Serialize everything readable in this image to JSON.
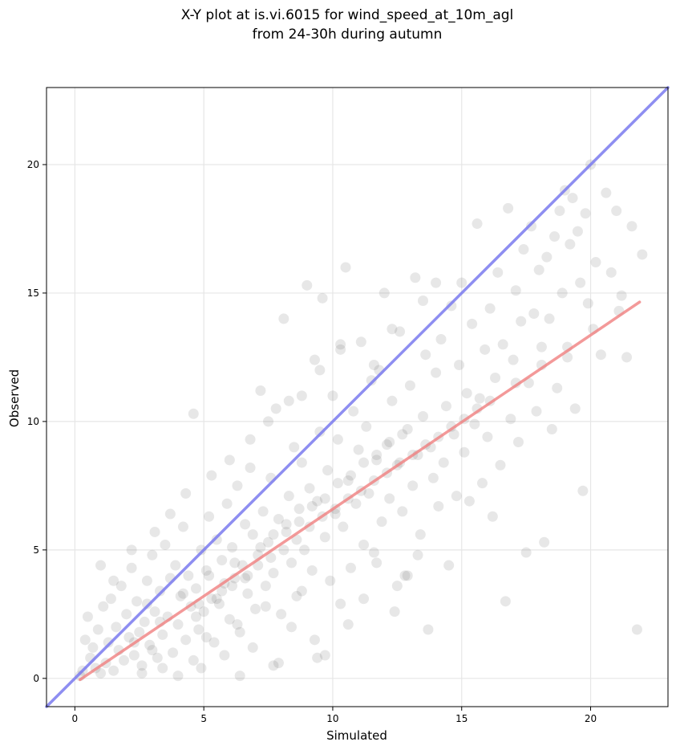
{
  "chart_data": {
    "type": "scatter",
    "title_line1": "X-Y plot at is.vi.6015 for wind_speed_at_10m_agl",
    "title_line2": "from 24-30h during autumn",
    "xlabel": "Simulated",
    "ylabel": "Observed",
    "xlim": [
      -1.1,
      23.0
    ],
    "ylim": [
      -1.1,
      23.0
    ],
    "xticks": [
      "0",
      "5",
      "10",
      "15",
      "20"
    ],
    "yticks": [
      "0",
      "5",
      "10",
      "15",
      "20"
    ],
    "grid": true,
    "legend": "none",
    "point_color": "#555555",
    "points": [
      [
        0.2,
        0.1
      ],
      [
        0.3,
        0.3
      ],
      [
        0.4,
        1.5
      ],
      [
        0.5,
        2.4
      ],
      [
        0.6,
        0.8
      ],
      [
        0.7,
        1.2
      ],
      [
        0.8,
        0.4
      ],
      [
        0.9,
        1.9
      ],
      [
        1.0,
        0.2
      ],
      [
        1.1,
        2.8
      ],
      [
        1.2,
        0.6
      ],
      [
        1.3,
        1.4
      ],
      [
        1.4,
        3.1
      ],
      [
        1.5,
        0.3
      ],
      [
        1.6,
        2.0
      ],
      [
        1.7,
        1.1
      ],
      [
        1.8,
        3.6
      ],
      [
        1.9,
        0.7
      ],
      [
        2.0,
        2.5
      ],
      [
        2.1,
        1.6
      ],
      [
        2.2,
        4.3
      ],
      [
        2.3,
        0.9
      ],
      [
        2.4,
        3.0
      ],
      [
        2.5,
        1.8
      ],
      [
        2.6,
        0.5
      ],
      [
        2.7,
        2.2
      ],
      [
        2.8,
        3.8
      ],
      [
        2.9,
        1.3
      ],
      [
        3.0,
        4.8
      ],
      [
        3.1,
        2.6
      ],
      [
        3.2,
        0.8
      ],
      [
        3.3,
        3.4
      ],
      [
        3.4,
        1.7
      ],
      [
        3.5,
        5.2
      ],
      [
        3.6,
        2.4
      ],
      [
        3.7,
        3.9
      ],
      [
        3.8,
        1.0
      ],
      [
        3.9,
        4.4
      ],
      [
        4.0,
        2.1
      ],
      [
        4.1,
        3.2
      ],
      [
        4.2,
        5.9
      ],
      [
        4.3,
        1.5
      ],
      [
        4.4,
        4.0
      ],
      [
        4.5,
        2.8
      ],
      [
        4.6,
        10.3
      ],
      [
        4.7,
        3.5
      ],
      [
        4.8,
        1.9
      ],
      [
        4.9,
        5.0
      ],
      [
        5.0,
        2.6
      ],
      [
        5.1,
        4.2
      ],
      [
        5.2,
        6.3
      ],
      [
        5.3,
        3.1
      ],
      [
        5.4,
        1.4
      ],
      [
        5.5,
        5.4
      ],
      [
        5.6,
        2.9
      ],
      [
        5.7,
        4.6
      ],
      [
        5.8,
        3.7
      ],
      [
        5.9,
        6.8
      ],
      [
        6.0,
        2.3
      ],
      [
        6.1,
        5.1
      ],
      [
        6.2,
        3.9
      ],
      [
        6.3,
        7.5
      ],
      [
        6.4,
        1.8
      ],
      [
        6.5,
        4.4
      ],
      [
        6.6,
        6.0
      ],
      [
        6.7,
        3.3
      ],
      [
        6.8,
        8.2
      ],
      [
        6.9,
        5.6
      ],
      [
        7.0,
        2.7
      ],
      [
        7.1,
        4.8
      ],
      [
        7.2,
        11.2
      ],
      [
        7.3,
        6.5
      ],
      [
        7.4,
        3.6
      ],
      [
        7.5,
        5.3
      ],
      [
        7.6,
        7.8
      ],
      [
        7.7,
        4.1
      ],
      [
        7.8,
        10.5
      ],
      [
        7.9,
        6.2
      ],
      [
        8.0,
        2.5
      ],
      [
        8.1,
        14.0
      ],
      [
        8.2,
        5.7
      ],
      [
        8.3,
        7.1
      ],
      [
        8.4,
        4.5
      ],
      [
        8.5,
        9.0
      ],
      [
        8.6,
        3.2
      ],
      [
        8.7,
        6.6
      ],
      [
        8.8,
        8.4
      ],
      [
        8.9,
        5.0
      ],
      [
        9.0,
        15.3
      ],
      [
        9.1,
        7.4
      ],
      [
        9.2,
        4.2
      ],
      [
        9.3,
        12.4
      ],
      [
        9.4,
        6.9
      ],
      [
        9.5,
        9.6
      ],
      [
        9.6,
        14.8
      ],
      [
        9.7,
        5.5
      ],
      [
        9.8,
        8.1
      ],
      [
        9.9,
        3.8
      ],
      [
        10.0,
        11.0
      ],
      [
        10.1,
        6.4
      ],
      [
        10.2,
        9.3
      ],
      [
        10.3,
        12.8
      ],
      [
        10.4,
        5.9
      ],
      [
        10.5,
        16.0
      ],
      [
        10.6,
        7.7
      ],
      [
        10.7,
        4.3
      ],
      [
        10.8,
        10.4
      ],
      [
        10.9,
        6.8
      ],
      [
        11.0,
        8.9
      ],
      [
        11.1,
        13.1
      ],
      [
        11.2,
        5.2
      ],
      [
        11.3,
        9.8
      ],
      [
        11.4,
        7.2
      ],
      [
        11.5,
        11.6
      ],
      [
        11.6,
        4.9
      ],
      [
        11.7,
        8.5
      ],
      [
        11.8,
        12.0
      ],
      [
        11.9,
        6.1
      ],
      [
        12.0,
        15.0
      ],
      [
        12.1,
        9.1
      ],
      [
        12.2,
        7.0
      ],
      [
        12.3,
        10.8
      ],
      [
        12.4,
        2.6
      ],
      [
        12.5,
        8.3
      ],
      [
        12.6,
        13.5
      ],
      [
        12.7,
        6.5
      ],
      [
        12.8,
        4.0
      ],
      [
        12.9,
        9.7
      ],
      [
        13.0,
        11.4
      ],
      [
        13.1,
        7.5
      ],
      [
        13.2,
        15.6
      ],
      [
        13.3,
        8.7
      ],
      [
        13.4,
        5.6
      ],
      [
        13.5,
        10.2
      ],
      [
        13.6,
        12.6
      ],
      [
        13.7,
        1.9
      ],
      [
        13.8,
        9.0
      ],
      [
        13.9,
        7.8
      ],
      [
        14.0,
        11.9
      ],
      [
        14.1,
        6.7
      ],
      [
        14.2,
        13.2
      ],
      [
        14.3,
        8.4
      ],
      [
        14.4,
        10.6
      ],
      [
        14.5,
        4.4
      ],
      [
        14.6,
        14.5
      ],
      [
        14.7,
        9.5
      ],
      [
        14.8,
        7.1
      ],
      [
        14.9,
        12.2
      ],
      [
        15.0,
        15.4
      ],
      [
        15.1,
        8.8
      ],
      [
        15.2,
        11.1
      ],
      [
        15.3,
        6.9
      ],
      [
        15.4,
        13.8
      ],
      [
        15.5,
        9.9
      ],
      [
        15.6,
        17.7
      ],
      [
        15.7,
        10.9
      ],
      [
        15.8,
        7.6
      ],
      [
        15.9,
        12.8
      ],
      [
        16.0,
        9.4
      ],
      [
        16.1,
        14.4
      ],
      [
        16.2,
        6.3
      ],
      [
        16.3,
        11.7
      ],
      [
        16.4,
        15.8
      ],
      [
        16.5,
        8.3
      ],
      [
        16.6,
        13.0
      ],
      [
        16.7,
        3.0
      ],
      [
        16.8,
        18.3
      ],
      [
        16.9,
        10.1
      ],
      [
        17.0,
        12.4
      ],
      [
        17.1,
        15.1
      ],
      [
        17.2,
        9.2
      ],
      [
        17.3,
        13.9
      ],
      [
        17.4,
        16.7
      ],
      [
        17.5,
        4.9
      ],
      [
        17.6,
        11.5
      ],
      [
        17.7,
        17.6
      ],
      [
        17.8,
        14.2
      ],
      [
        17.9,
        10.4
      ],
      [
        18.0,
        15.9
      ],
      [
        18.1,
        12.9
      ],
      [
        18.2,
        5.3
      ],
      [
        18.3,
        16.4
      ],
      [
        18.4,
        14.0
      ],
      [
        18.5,
        9.7
      ],
      [
        18.6,
        17.2
      ],
      [
        18.7,
        11.3
      ],
      [
        18.8,
        18.2
      ],
      [
        18.9,
        15.0
      ],
      [
        19.0,
        19.0
      ],
      [
        19.1,
        12.5
      ],
      [
        19.2,
        16.9
      ],
      [
        19.3,
        18.7
      ],
      [
        19.4,
        10.5
      ],
      [
        19.5,
        17.4
      ],
      [
        19.6,
        15.4
      ],
      [
        19.7,
        7.3
      ],
      [
        19.8,
        18.1
      ],
      [
        19.9,
        14.6
      ],
      [
        20.0,
        20.0
      ],
      [
        20.2,
        16.2
      ],
      [
        20.4,
        12.6
      ],
      [
        20.6,
        18.9
      ],
      [
        20.8,
        15.8
      ],
      [
        21.0,
        18.2
      ],
      [
        21.2,
        14.9
      ],
      [
        21.4,
        12.5
      ],
      [
        21.6,
        17.6
      ],
      [
        21.8,
        1.9
      ],
      [
        22.0,
        16.5
      ],
      [
        3.0,
        1.1
      ],
      [
        3.4,
        0.4
      ],
      [
        4.6,
        0.7
      ],
      [
        5.1,
        1.6
      ],
      [
        5.8,
        0.9
      ],
      [
        6.3,
        2.1
      ],
      [
        6.9,
        1.2
      ],
      [
        7.4,
        2.8
      ],
      [
        7.9,
        0.6
      ],
      [
        8.4,
        2.0
      ],
      [
        8.8,
        3.4
      ],
      [
        9.3,
        1.5
      ],
      [
        9.7,
        0.9
      ],
      [
        10.3,
        2.9
      ],
      [
        10.6,
        2.1
      ],
      [
        11.2,
        3.1
      ],
      [
        11.7,
        4.5
      ],
      [
        12.5,
        3.6
      ],
      [
        12.9,
        4.0
      ],
      [
        13.3,
        4.8
      ],
      [
        1.0,
        4.4
      ],
      [
        1.5,
        3.8
      ],
      [
        2.2,
        5.0
      ],
      [
        3.1,
        5.7
      ],
      [
        3.7,
        6.4
      ],
      [
        4.3,
        7.2
      ],
      [
        5.3,
        7.9
      ],
      [
        6.0,
        8.5
      ],
      [
        6.8,
        9.3
      ],
      [
        7.5,
        10.0
      ],
      [
        8.3,
        10.8
      ],
      [
        8.8,
        11.0
      ],
      [
        9.5,
        12.0
      ],
      [
        10.3,
        13.0
      ],
      [
        11.6,
        12.2
      ],
      [
        12.3,
        13.6
      ],
      [
        13.5,
        14.7
      ],
      [
        14.0,
        15.4
      ],
      [
        2.6,
        0.2
      ],
      [
        4.0,
        0.1
      ],
      [
        4.9,
        0.4
      ],
      [
        6.4,
        0.1
      ],
      [
        7.7,
        0.5
      ],
      [
        9.4,
        0.8
      ],
      [
        2.3,
        1.4
      ],
      [
        4.7,
        2.4
      ],
      [
        5.5,
        3.1
      ],
      [
        6.1,
        3.6
      ],
      [
        6.6,
        3.9
      ],
      [
        7.1,
        4.4
      ],
      [
        7.6,
        4.7
      ],
      [
        8.1,
        5.0
      ],
      [
        8.6,
        5.4
      ],
      [
        9.1,
        5.9
      ],
      [
        9.6,
        6.3
      ],
      [
        10.1,
        6.6
      ],
      [
        10.6,
        7.0
      ],
      [
        11.1,
        7.3
      ],
      [
        11.6,
        7.7
      ],
      [
        12.1,
        8.0
      ],
      [
        12.6,
        8.4
      ],
      [
        13.1,
        8.7
      ],
      [
        13.6,
        9.1
      ],
      [
        14.1,
        9.4
      ],
      [
        14.6,
        9.8
      ],
      [
        15.1,
        10.1
      ],
      [
        15.6,
        10.5
      ],
      [
        16.1,
        10.8
      ],
      [
        17.1,
        11.5
      ],
      [
        18.1,
        12.2
      ],
      [
        19.1,
        12.9
      ],
      [
        20.1,
        13.6
      ],
      [
        21.1,
        14.3
      ],
      [
        2.8,
        2.9
      ],
      [
        3.3,
        2.2
      ],
      [
        4.2,
        3.3
      ],
      [
        4.8,
        2.9
      ],
      [
        5.2,
        4.0
      ],
      [
        5.7,
        3.4
      ],
      [
        6.2,
        4.5
      ],
      [
        6.7,
        4.0
      ],
      [
        7.2,
        5.1
      ],
      [
        7.7,
        5.6
      ],
      [
        8.2,
        6.0
      ],
      [
        8.7,
        6.1
      ],
      [
        9.2,
        6.7
      ],
      [
        9.7,
        7.0
      ],
      [
        10.2,
        7.6
      ],
      [
        10.7,
        7.9
      ],
      [
        11.2,
        8.4
      ],
      [
        11.7,
        8.7
      ],
      [
        12.2,
        9.2
      ],
      [
        12.7,
        9.5
      ]
    ],
    "fit_line": {
      "color": "#f08080",
      "x": [
        0.2,
        21.9
      ],
      "y": [
        -0.05,
        14.65
      ]
    },
    "identity_line": {
      "color": "#7a7aee",
      "x": [
        -1.1,
        23.0
      ],
      "y": [
        -1.1,
        23.0
      ]
    }
  }
}
